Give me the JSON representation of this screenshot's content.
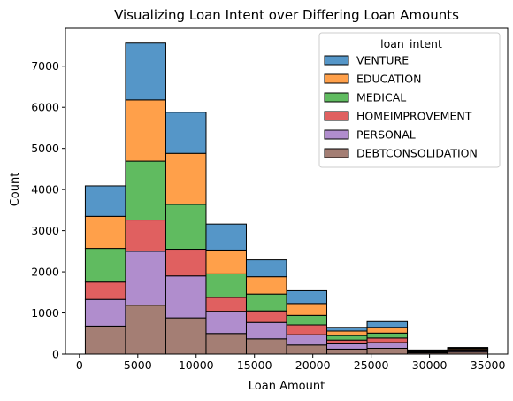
{
  "chart_data": {
    "type": "bar",
    "stacked": true,
    "title": "Visualizing Loan Intent over Differing Loan Amounts",
    "xlabel": "Loan Amount",
    "ylabel": "Count",
    "xlim": [
      -1200,
      36700
    ],
    "ylim": [
      0,
      7920
    ],
    "xticks": [
      0,
      5000,
      10000,
      15000,
      20000,
      25000,
      30000,
      35000
    ],
    "yticks": [
      0,
      1000,
      2000,
      3000,
      4000,
      5000,
      6000,
      7000
    ],
    "bins": [
      [
        500,
        3950
      ],
      [
        3950,
        7400
      ],
      [
        7400,
        10850
      ],
      [
        10850,
        14300
      ],
      [
        14300,
        17750
      ],
      [
        17750,
        21200
      ],
      [
        21200,
        24650
      ],
      [
        24650,
        28100
      ],
      [
        28100,
        31550
      ],
      [
        31550,
        35000
      ]
    ],
    "legend": {
      "title": "loan_intent",
      "position": "top-right"
    },
    "series": [
      {
        "name": "DEBTCONSOLIDATION",
        "color": "#a47e74",
        "values": [
          680,
          1190,
          880,
          500,
          370,
          220,
          120,
          140,
          30,
          50
        ]
      },
      {
        "name": "PERSONAL",
        "color": "#b08dcd",
        "values": [
          650,
          1310,
          1020,
          540,
          400,
          250,
          130,
          140,
          20,
          25
        ]
      },
      {
        "name": "HOMEIMPROVEMENT",
        "color": "#e06060",
        "values": [
          420,
          760,
          650,
          340,
          280,
          240,
          90,
          110,
          15,
          25
        ]
      },
      {
        "name": "MEDICAL",
        "color": "#60bb60",
        "values": [
          820,
          1430,
          1090,
          570,
          410,
          230,
          110,
          120,
          15,
          15
        ]
      },
      {
        "name": "EDUCATION",
        "color": "#ffa04a",
        "values": [
          780,
          1490,
          1240,
          580,
          420,
          290,
          110,
          140,
          10,
          25
        ]
      },
      {
        "name": "VENTURE",
        "color": "#5596c8",
        "values": [
          740,
          1380,
          1000,
          630,
          410,
          310,
          90,
          140,
          10,
          20
        ]
      }
    ]
  }
}
